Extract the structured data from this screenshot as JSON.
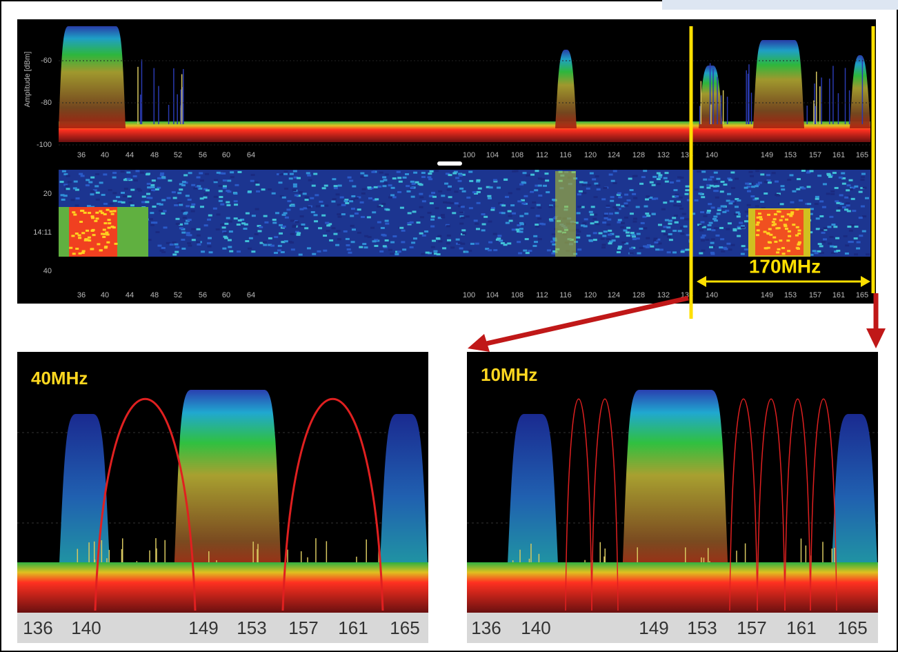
{
  "spectrum": {
    "y_axis_title": "Amplitude [dBm]",
    "y_labels": [
      "-60",
      "-80",
      "-100"
    ],
    "x_labels": [
      "36",
      "40",
      "44",
      "48",
      "52",
      "56",
      "60",
      "64",
      "100",
      "104",
      "108",
      "112",
      "116",
      "120",
      "124",
      "128",
      "132",
      "136",
      "140",
      "149",
      "153",
      "157",
      "161",
      "165"
    ]
  },
  "waterfall": {
    "y_labels": [
      "20",
      "14:11",
      "40"
    ],
    "x_labels": [
      "36",
      "40",
      "44",
      "48",
      "52",
      "56",
      "60",
      "64",
      "100",
      "104",
      "108",
      "112",
      "116",
      "120",
      "124",
      "128",
      "132",
      "136",
      "140",
      "149",
      "153",
      "157",
      "161",
      "165"
    ]
  },
  "annotation": {
    "span": "170MHz"
  },
  "zoom_left": {
    "label": "40MHz",
    "x_labels": [
      "136",
      "140",
      "149",
      "153",
      "157",
      "161",
      "165"
    ]
  },
  "zoom_right": {
    "label": "10MHz",
    "x_labels": [
      "136",
      "140",
      "149",
      "153",
      "157",
      "161",
      "165"
    ]
  }
}
